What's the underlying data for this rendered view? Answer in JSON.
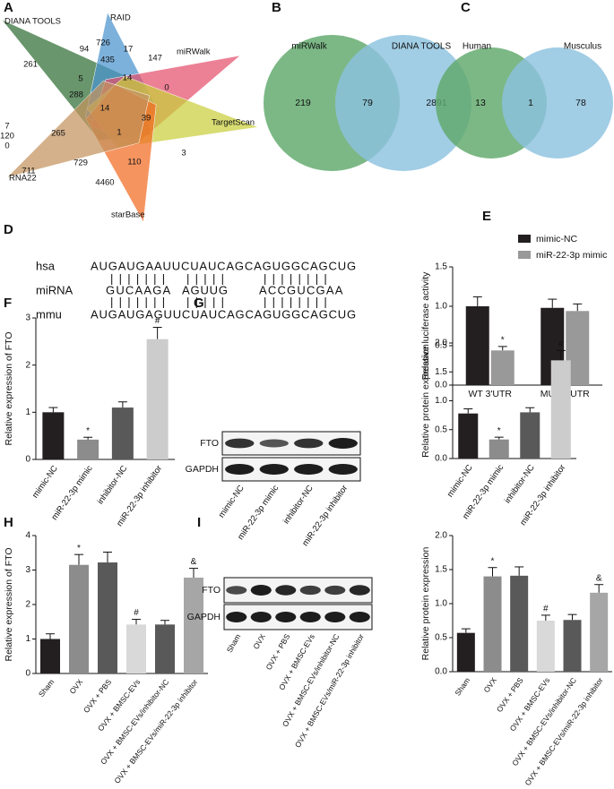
{
  "chart_data": [
    {
      "type": "star-venn",
      "label": "A",
      "sets": [
        {
          "name": "DIANA TOOLS",
          "color": "#2f6e34"
        },
        {
          "name": "RAID",
          "color": "#4a93cf"
        },
        {
          "name": "miRWalk",
          "color": "#e4506c"
        },
        {
          "name": "TargetScan",
          "color": "#c9cf3c"
        },
        {
          "name": "RNA22",
          "color": "#f26b22"
        },
        {
          "name": "starBase",
          "color": "#c4935e"
        }
      ],
      "regions": [
        261,
        94,
        726,
        17,
        435,
        147,
        5,
        14,
        288,
        0,
        7,
        120,
        0,
        14,
        39,
        265,
        1,
        3,
        711,
        729,
        4460,
        110
      ]
    },
    {
      "type": "venn",
      "label": "B",
      "sets": [
        {
          "name": "miRWalk",
          "color": "#5fa86a"
        },
        {
          "name": "DIANA TOOLS",
          "color": "#8cc2df"
        }
      ],
      "regions": [
        219,
        79,
        2891
      ]
    },
    {
      "type": "venn",
      "label": "C",
      "sets": [
        {
          "name": "Human",
          "color": "#5fa86a"
        },
        {
          "name": "Musculus",
          "color": "#8cc2df"
        }
      ],
      "regions": [
        13,
        1,
        78
      ]
    },
    {
      "type": "alignment",
      "label": "D",
      "rows": [
        {
          "name": "hsa",
          "segments": [
            "AUGAUGAAUUCUAUCAGCAGUGGCAGCUG"
          ]
        },
        {
          "segments": [
            "|||||||",
            "|||||",
            "||||||||"
          ]
        },
        {
          "name": "miRNA",
          "segments": [
            "GUCAAGA",
            "AGUUG",
            "ACCGUCGAA"
          ]
        },
        {
          "segments": [
            "|||||||",
            "|||||",
            "||||||||"
          ]
        },
        {
          "name": "mmu",
          "segments": [
            "AUGAUGAGUUCUAUCAGCAGUGGCAGCUG"
          ]
        }
      ]
    },
    {
      "type": "grouped-bar",
      "label": "E",
      "ylabel": "Relative luciferase activity",
      "categories": [
        "WT 3'UTR",
        "MUT 3'UTR"
      ],
      "series": [
        {
          "name": "mimic-NC",
          "color": "#231f20",
          "values": [
            1.0,
            0.98
          ],
          "errors": [
            0.12,
            0.11
          ],
          "marks": [
            null,
            null
          ]
        },
        {
          "name": "miR-22-3p mimic",
          "color": "#999999",
          "values": [
            0.44,
            0.94
          ],
          "errors": [
            0.05,
            0.09
          ],
          "marks": [
            "*",
            null
          ]
        }
      ],
      "ylim": [
        0,
        1.5
      ],
      "yticks": [
        {
          "value": 0,
          "label": "0.0"
        },
        {
          "value": 0.5,
          "label": "0.5"
        },
        {
          "value": 1,
          "label": "1.0"
        },
        {
          "value": 1.5,
          "label": "1.5"
        }
      ],
      "legend": "top-left"
    },
    {
      "type": "bar",
      "label": "F",
      "ylabel": "Relative expression of FTO",
      "categories": [
        "mimic-NC",
        "miR-22-3p mimic",
        "inhibitor-NC",
        "miR-22-3p inhibitor"
      ],
      "values": [
        1.0,
        0.42,
        1.1,
        2.55
      ],
      "errors": [
        0.1,
        0.05,
        0.12,
        0.25
      ],
      "marks": [
        null,
        "*",
        null,
        "#"
      ],
      "colors": [
        "#231f20",
        "#8c8c8c",
        "#595959",
        "#cccccc"
      ],
      "ylim": [
        0,
        3
      ],
      "yticks": [
        0,
        1,
        2,
        3
      ]
    },
    {
      "type": "bar",
      "label": "G",
      "ylabel": "Relative protein expression",
      "blot": [
        "FTO",
        "GAPDH"
      ],
      "categories": [
        "mimic-NC",
        "miR-22-3p mimic",
        "inhibitor-NC",
        "miR-22-3p inhibitor"
      ],
      "values": [
        0.78,
        0.33,
        0.8,
        1.7
      ],
      "errors": [
        0.08,
        0.04,
        0.08,
        0.17
      ],
      "marks": [
        null,
        "*",
        null,
        "#"
      ],
      "colors": [
        "#231f20",
        "#8c8c8c",
        "#595959",
        "#cccccc"
      ],
      "ylim": [
        0,
        2
      ],
      "yticks": [
        {
          "value": 0,
          "label": "0.0"
        },
        {
          "value": 0.5,
          "label": "0.5"
        },
        {
          "value": 1,
          "label": "1.0"
        },
        {
          "value": 1.5,
          "label": "1.5"
        },
        {
          "value": 2,
          "label": "2.0"
        }
      ]
    },
    {
      "type": "bar",
      "label": "H",
      "ylabel": "Relative expression of FTO",
      "categories": [
        "Sham",
        "OVX",
        "OVX + PBS",
        "OVX + BMSC-EVs",
        "OVX + BMSC-EVs/inhibitor-NC",
        "OVX + BMSC-EVs/miR-22-3p inhibitor"
      ],
      "values": [
        1.0,
        3.15,
        3.22,
        1.42,
        1.42,
        2.78
      ],
      "errors": [
        0.15,
        0.3,
        0.3,
        0.15,
        0.12,
        0.27
      ],
      "marks": [
        null,
        "*",
        null,
        "#",
        null,
        "&"
      ],
      "colors": [
        "#231f20",
        "#8c8c8c",
        "#595959",
        "#d9d9d9",
        "#595959",
        "#a6a6a6"
      ],
      "ylim": [
        0,
        4
      ],
      "yticks": [
        0,
        1,
        2,
        3,
        4
      ]
    },
    {
      "type": "bar",
      "label": "I",
      "ylabel": "Relative protein expression",
      "blot": [
        "FTO",
        "GAPDH"
      ],
      "categories": [
        "Sham",
        "OVX",
        "OVX + PBS",
        "OVX + BMSC-EVs",
        "OVX + BMSC-EVs/inhibitor-NC",
        "OVX + BMSC-EVs/miR-22-3p inhibitor"
      ],
      "values": [
        0.57,
        1.4,
        1.41,
        0.75,
        0.76,
        1.16
      ],
      "errors": [
        0.06,
        0.13,
        0.13,
        0.08,
        0.08,
        0.12
      ],
      "marks": [
        null,
        "*",
        null,
        "#",
        null,
        "&"
      ],
      "colors": [
        "#231f20",
        "#8c8c8c",
        "#595959",
        "#d9d9d9",
        "#595959",
        "#a6a6a6"
      ],
      "ylim": [
        0,
        2
      ],
      "yticks": [
        {
          "value": 0,
          "label": "0.0"
        },
        {
          "value": 0.5,
          "label": "0.5"
        },
        {
          "value": 1,
          "label": "1.0"
        },
        {
          "value": 1.5,
          "label": "1.5"
        },
        {
          "value": 2,
          "label": "2.0"
        }
      ]
    }
  ]
}
